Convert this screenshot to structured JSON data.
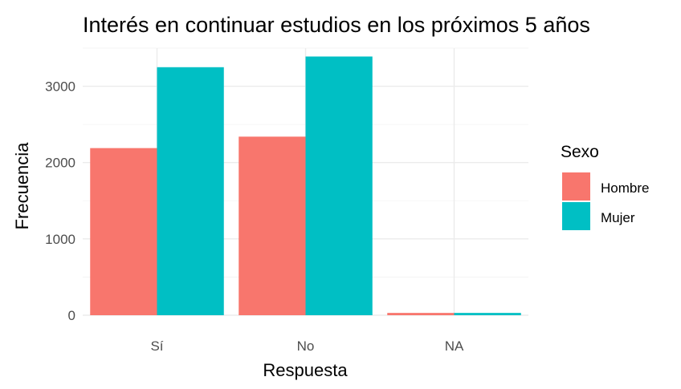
{
  "chart_data": {
    "type": "bar",
    "title": "Interés en continuar estudios en los próximos 5 años",
    "xlabel": "Respuesta",
    "ylabel": "Frecuencia",
    "categories": [
      "Sí",
      "No",
      "NA"
    ],
    "series": [
      {
        "name": "Hombre",
        "color": "#F8766D",
        "values": [
          2190,
          2340,
          30
        ]
      },
      {
        "name": "Mujer",
        "color": "#00BFC4",
        "values": [
          3250,
          3390,
          30
        ]
      }
    ],
    "ylim": [
      0,
      3500
    ],
    "yticks": [
      0,
      1000,
      2000,
      3000
    ],
    "ytick_labels": [
      "0",
      "1000",
      "2000",
      "3000"
    ],
    "grid": true,
    "legend": {
      "title": "Sexo",
      "position": "right"
    }
  }
}
